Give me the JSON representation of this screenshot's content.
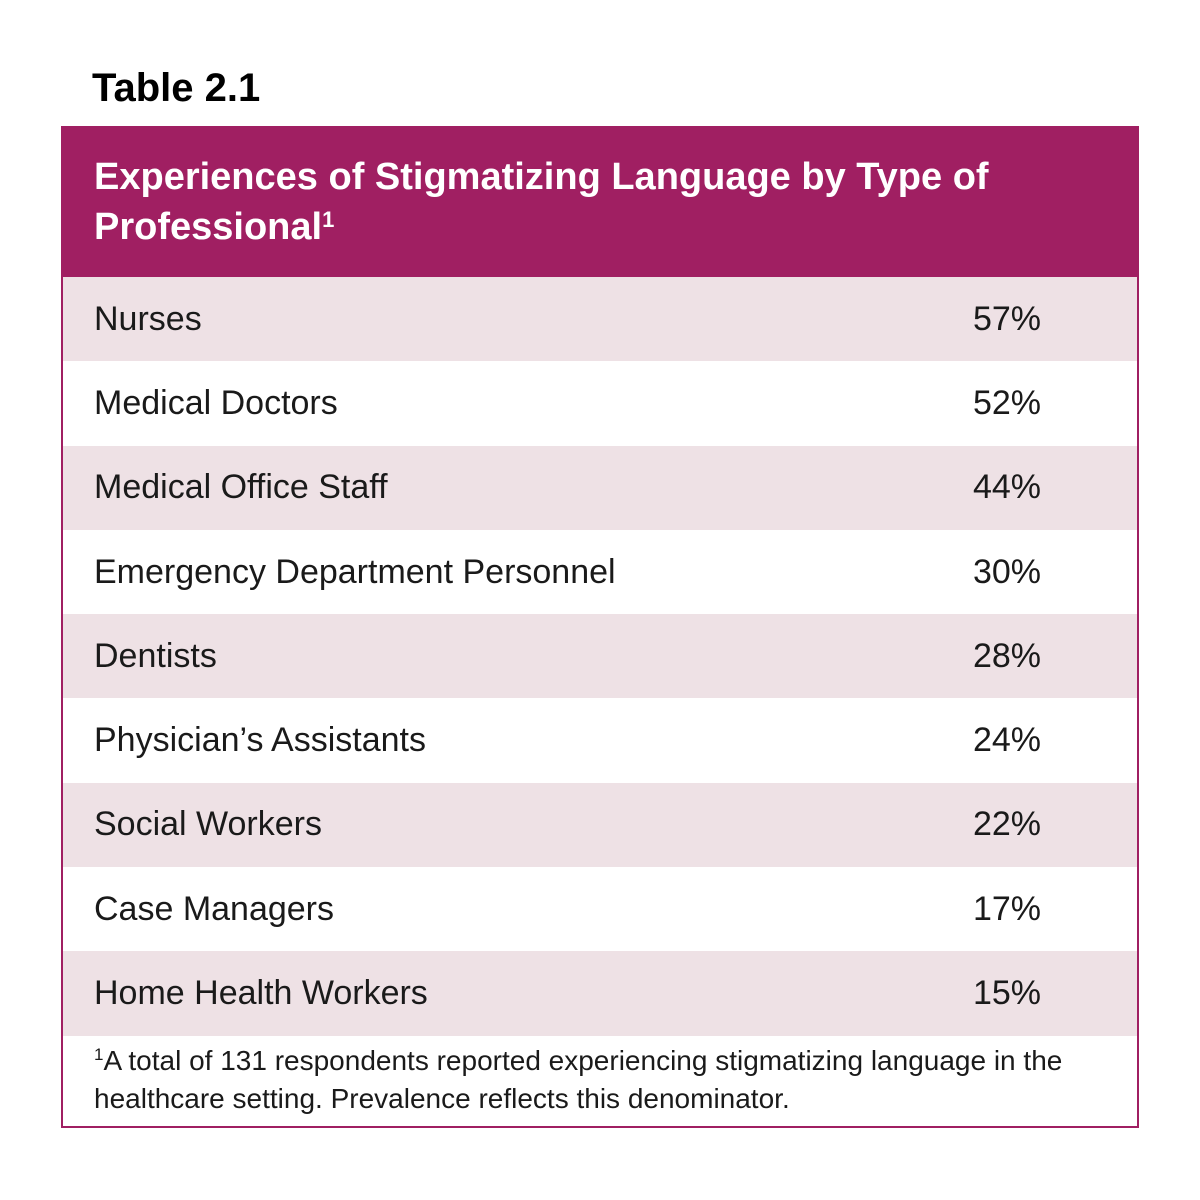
{
  "table_label": "Table 2.1",
  "title": "Experiences of Stigmatizing Language by Type of Professional",
  "title_footnote_marker": "1",
  "accent_color": "#a01f62",
  "rows": [
    {
      "label": "Nurses",
      "value": "57%"
    },
    {
      "label": "Medical Doctors",
      "value": "52%"
    },
    {
      "label": "Medical Office Staff",
      "value": "44%"
    },
    {
      "label": "Emergency Department Personnel",
      "value": "30%"
    },
    {
      "label": "Dentists",
      "value": "28%"
    },
    {
      "label": "Physician’s Assistants",
      "value": "24%"
    },
    {
      "label": "Social Workers",
      "value": "22%"
    },
    {
      "label": "Case Managers",
      "value": "17%"
    },
    {
      "label": "Home Health Workers",
      "value": "15%"
    }
  ],
  "footnote": {
    "marker": "1",
    "text": "A total of 131 respondents reported experiencing stigmatizing language in the healthcare setting. Prevalence reflects this denominator."
  }
}
